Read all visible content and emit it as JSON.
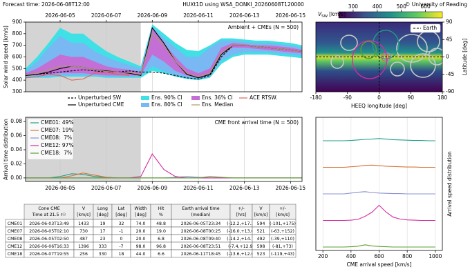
{
  "header": {
    "forecast_label": "Forecast time:",
    "forecast_time": "2026-06-08T12:00",
    "title": "HUXt1D using WSA_DONKI_20260608T120000",
    "credit": "© University of Reading"
  },
  "chart_data": [
    {
      "type": "line",
      "ylabel": "Solar wind speed [km/s]",
      "annotation": "Ambient + CMEs (N = 500)",
      "x": [
        "2026-06-03T12:00",
        "2026-06-04T00:00",
        "2026-06-04T12:00",
        "2026-06-05T00:00",
        "2026-06-05T12:00",
        "2026-06-06T00:00",
        "2026-06-06T12:00",
        "2026-06-07T00:00",
        "2026-06-07T12:00",
        "2026-06-08T00:00",
        "2026-06-08T12:00",
        "2026-06-09T00:00",
        "2026-06-09T12:00",
        "2026-06-10T00:00",
        "2026-06-10T12:00",
        "2026-06-11T00:00",
        "2026-06-11T12:00",
        "2026-06-12T00:00",
        "2026-06-12T12:00",
        "2026-06-13T00:00",
        "2026-06-13T12:00",
        "2026-06-14T00:00",
        "2026-06-14T12:00",
        "2026-06-15T00:00",
        "2026-06-15T12:00"
      ],
      "xlim": [
        "2026-06-03T12:00",
        "2026-06-15T12:00"
      ],
      "xticks": [
        "2026-06-05",
        "2026-06-07",
        "2026-06-09",
        "2026-06-11",
        "2026-06-13",
        "2026-06-15"
      ],
      "xaxis_position": "top",
      "ylim": [
        300,
        900
      ],
      "yticks": [
        300,
        400,
        500,
        600,
        700,
        800,
        900
      ],
      "grid": true,
      "shade_observed": true,
      "legend": "below",
      "series": [
        {
          "name": "Unperturbed SW",
          "color": "#000000",
          "dash": true,
          "values": [
            440,
            450,
            460,
            470,
            480,
            490,
            480,
            470,
            470,
            480,
            470,
            470,
            460,
            440,
            420,
            410,
            440,
            600,
            700,
            700,
            690,
            680,
            670,
            660,
            650
          ]
        },
        {
          "name": "Unperturbed CME",
          "color": "#000000",
          "values": [
            440,
            450,
            470,
            500,
            520,
            510,
            490,
            480,
            470,
            460,
            440,
            850,
            720,
            560,
            450,
            420,
            450,
            620,
            700,
            700,
            690,
            680,
            670,
            660,
            650
          ]
        },
        {
          "name": "Ens. 90% CI",
          "color": "#3fe0e6",
          "upper": [
            500,
            600,
            720,
            850,
            800,
            800,
            720,
            650,
            600,
            560,
            520,
            880,
            800,
            720,
            660,
            650,
            700,
            760,
            760,
            750,
            740,
            740,
            730,
            720,
            700
          ],
          "lower": [
            420,
            420,
            420,
            430,
            430,
            430,
            430,
            420,
            420,
            420,
            420,
            480,
            460,
            430,
            410,
            400,
            420,
            540,
            600,
            620,
            620,
            620,
            610,
            600,
            590
          ]
        },
        {
          "name": "Ens. 80% CI",
          "color": "#79b8f2",
          "upper": [
            480,
            560,
            680,
            780,
            720,
            720,
            650,
            600,
            560,
            530,
            500,
            860,
            760,
            680,
            600,
            600,
            680,
            740,
            740,
            730,
            720,
            720,
            710,
            700,
            680
          ],
          "lower": [
            430,
            430,
            430,
            440,
            440,
            440,
            440,
            430,
            430,
            430,
            430,
            520,
            480,
            440,
            420,
            410,
            430,
            570,
            620,
            640,
            640,
            640,
            630,
            620,
            610
          ]
        },
        {
          "name": "Ens. 36% CI",
          "color": "#c46fd6",
          "upper": [
            460,
            500,
            560,
            620,
            600,
            600,
            560,
            520,
            500,
            490,
            470,
            840,
            720,
            600,
            500,
            460,
            500,
            680,
            720,
            710,
            700,
            700,
            690,
            680,
            660
          ],
          "lower": [
            440,
            440,
            450,
            460,
            460,
            460,
            450,
            440,
            440,
            440,
            440,
            620,
            560,
            480,
            440,
            420,
            450,
            620,
            680,
            680,
            670,
            660,
            650,
            640,
            630
          ]
        },
        {
          "name": "Ens. Median",
          "color": "#a5a060",
          "values": [
            445,
            460,
            490,
            520,
            520,
            510,
            490,
            475,
            470,
            465,
            450,
            800,
            700,
            560,
            460,
            430,
            460,
            640,
            700,
            700,
            690,
            680,
            670,
            660,
            650
          ]
        },
        {
          "name": "ACE RTSW.",
          "color": "#e0605a",
          "values": [
            420,
            430,
            450,
            440,
            400,
            410,
            460,
            470,
            450,
            440,
            null,
            null,
            null,
            null,
            null,
            null,
            null,
            null,
            null,
            null,
            null,
            null,
            null,
            null,
            null
          ]
        }
      ]
    },
    {
      "type": "map",
      "xlabel": "HEEQ longitude [deg]",
      "ylabel": "Latitude [deg]",
      "xlim": [
        -180,
        180
      ],
      "xticks": [
        -180,
        -90,
        0,
        90,
        180
      ],
      "ylim": [
        -90,
        90
      ],
      "yticks": [
        -90,
        -45,
        0,
        45,
        90
      ],
      "earth": {
        "name": "Earth",
        "lon": 0,
        "lat": 0
      },
      "colorbar": {
        "symbol": "V",
        "subscript": "SW",
        "unit": "[km/s]",
        "colormap": "viridis",
        "lim": [
          240,
          670
        ],
        "ticks": [
          300,
          400,
          500,
          600
        ]
      }
    },
    {
      "type": "line",
      "ylabel": "Arrival time distribution",
      "annotation": "CME front arrival time (N = 500)",
      "x": [
        "2026-06-03T12:00",
        "2026-06-04T00:00",
        "2026-06-04T12:00",
        "2026-06-05T00:00",
        "2026-06-05T12:00",
        "2026-06-06T00:00",
        "2026-06-06T12:00",
        "2026-06-07T00:00",
        "2026-06-07T12:00",
        "2026-06-08T00:00",
        "2026-06-08T12:00",
        "2026-06-09T00:00",
        "2026-06-09T12:00",
        "2026-06-10T00:00",
        "2026-06-10T12:00",
        "2026-06-11T00:00",
        "2026-06-11T12:00",
        "2026-06-12T00:00",
        "2026-06-12T12:00",
        "2026-06-13T00:00",
        "2026-06-13T12:00",
        "2026-06-14T00:00",
        "2026-06-14T12:00",
        "2026-06-15T00:00",
        "2026-06-15T12:00"
      ],
      "xlim": [
        "2026-06-03T12:00",
        "2026-06-15T12:00"
      ],
      "xticks": [
        "2026-06-05",
        "2026-06-07",
        "2026-06-09",
        "2026-06-11",
        "2026-06-13",
        "2026-06-15"
      ],
      "xaxis_position": "bottom",
      "ylim": [
        -0.005,
        0.086
      ],
      "yticks": [
        {
          "value": 0,
          "label": "0.00"
        },
        {
          "value": 0.02,
          "label": "0.02"
        },
        {
          "value": 0.04,
          "label": "0.04"
        },
        {
          "value": 0.06,
          "label": "0.06"
        },
        {
          "value": 0.08,
          "label": "0.08"
        }
      ],
      "grid": true,
      "shade_observed": true,
      "legend": "upper left",
      "series": [
        {
          "name": "CME01: 49%",
          "color": "#1f9e89",
          "values": [
            0,
            0,
            0,
            0.002,
            0.006,
            0.005,
            0.002,
            0.001,
            0,
            0,
            0,
            0,
            0,
            0,
            0,
            0,
            0,
            0,
            0,
            0,
            0,
            0,
            0,
            0,
            0
          ]
        },
        {
          "name": "CME07: 19%",
          "color": "#d9733a",
          "values": [
            0,
            0,
            0,
            0,
            0.003,
            0.007,
            0.004,
            0.001,
            0,
            0,
            0,
            0,
            0,
            0,
            0,
            0,
            0,
            0,
            0,
            0,
            0,
            0,
            0,
            0,
            0
          ]
        },
        {
          "name": "CME08:  7%",
          "color": "#8a8fd1",
          "values": [
            0,
            0,
            0,
            0,
            0,
            0,
            0,
            0,
            0,
            0,
            0,
            0,
            0,
            0.001,
            0.002,
            0.001,
            0,
            0,
            0,
            0,
            0,
            0,
            0,
            0,
            0
          ]
        },
        {
          "name": "CME12: 97%",
          "color": "#d62ba0",
          "values": [
            0,
            0,
            0,
            0,
            0,
            0,
            0,
            0,
            0,
            0,
            0.002,
            0.034,
            0.012,
            0.002,
            0,
            0,
            0,
            0,
            0,
            0,
            0,
            0,
            0,
            0,
            0
          ]
        },
        {
          "name": "CME18:  7%",
          "color": "#5aa02c",
          "values": [
            0,
            0,
            0,
            0,
            0,
            0,
            0,
            0,
            0,
            0,
            0,
            0,
            0,
            0,
            0,
            0,
            0.002,
            0.001,
            0,
            0,
            0,
            0,
            0,
            0,
            0
          ]
        }
      ]
    },
    {
      "type": "ridge",
      "xlabel": "CME arrival speed [km/s]",
      "ylabel": "Arrival speed distribution",
      "x": [
        200,
        250,
        300,
        350,
        400,
        450,
        500,
        550,
        600,
        650,
        700,
        750,
        800,
        850,
        900,
        950,
        1000
      ],
      "xlim": [
        150,
        1050
      ],
      "xticks": [
        200,
        400,
        600,
        800,
        1000
      ],
      "grid": true,
      "series": [
        {
          "color": "#1f9e89",
          "values": [
            0,
            0,
            0,
            0,
            0.0001,
            0.0003,
            0.0005,
            0.0006,
            0.0008,
            0.0006,
            0.0004,
            0.0003,
            0.0002,
            0.0001,
            0.0001,
            0,
            0
          ]
        },
        {
          "color": "#d9733a",
          "values": [
            0,
            0,
            0,
            0,
            0.0002,
            0.0004,
            0.0007,
            0.0008,
            0.0006,
            0.0004,
            0.0003,
            0.0002,
            0.0001,
            0.0001,
            0,
            0,
            0
          ]
        },
        {
          "color": "#8a8fd1",
          "values": [
            0,
            0,
            0,
            0,
            0.0003,
            0.0006,
            0.0008,
            0.0005,
            0.0003,
            0.0002,
            0.0001,
            0.0001,
            0,
            0,
            0,
            0,
            0
          ]
        },
        {
          "color": "#d62ba0",
          "values": [
            0,
            0,
            0,
            0,
            0.0001,
            0.0004,
            0.0015,
            0.003,
            0.0055,
            0.003,
            0.0012,
            0.0005,
            0.0002,
            0.0001,
            0,
            0,
            0
          ]
        },
        {
          "color": "#5aa02c",
          "values": [
            0,
            0,
            0,
            0,
            0.0001,
            0.0003,
            0.0008,
            0.0004,
            0.0002,
            0.0001,
            0,
            0,
            0,
            0,
            0,
            0,
            0
          ]
        }
      ]
    }
  ],
  "table": {
    "columns": [
      [
        "Cone CME",
        "Time at 21.5 r☉"
      ],
      [
        "V",
        "[km/s]"
      ],
      [
        "Long",
        "[deg]"
      ],
      [
        "Lat",
        "[deg]"
      ],
      [
        "Width",
        "[deg]"
      ],
      [
        "Hit",
        "%"
      ],
      [
        "Earth arrival time",
        "(median)"
      ],
      [
        "+/-",
        "[hrs]"
      ],
      [
        "V",
        "[km/s]"
      ],
      [
        "+/-",
        "[km/s]"
      ]
    ],
    "rows": [
      [
        "CME01",
        "2026-06-03T13:49",
        "1433",
        "19",
        "32",
        "74.0",
        "48.8",
        "2026-06-05T23:34",
        "(-12.2,+17.3)",
        "594",
        "(-101,+175)"
      ],
      [
        "CME07",
        "2026-06-05T02:10",
        "730",
        "17",
        "-1",
        "20.0",
        "19.0",
        "2026-06-08T00:25",
        "(-16.0,+13.6)",
        "521",
        "(-63,+152)"
      ],
      [
        "CME08",
        "2026-06-05T02:50",
        "487",
        "23",
        "0",
        "20.0",
        "6.8",
        "2026-06-08T09:40",
        "(-14.2,+14.7)",
        "492",
        "(-39,+110)"
      ],
      [
        "CME12",
        "2026-06-06T16:33",
        "1396",
        "333",
        "-7",
        "98.0",
        "96.8",
        "2026-06-08T23:51",
        "(-7.4,+12.9)",
        "598",
        "(-81,+73)"
      ],
      [
        "CME18",
        "2026-06-07T19:55",
        "256",
        "330",
        "18",
        "44.0",
        "6.6",
        "2026-06-11T18:45",
        "(-13.6,+12.6)",
        "523",
        "(-119,+43)"
      ]
    ]
  }
}
